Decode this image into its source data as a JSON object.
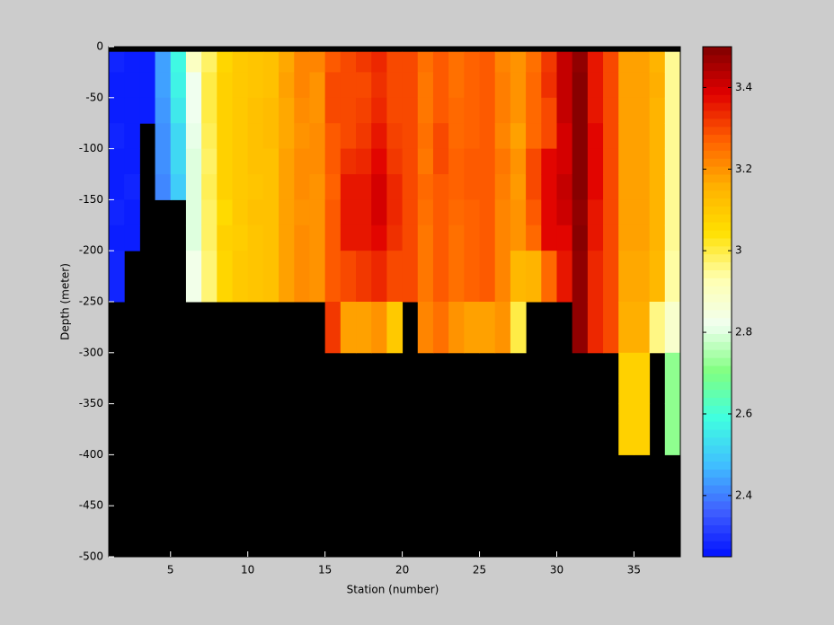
{
  "chart_data": {
    "type": "heatmap",
    "xlabel": "Station (number)",
    "ylabel": "Depth (meter)",
    "x": [
      1,
      2,
      3,
      4,
      5,
      6,
      7,
      8,
      9,
      10,
      11,
      12,
      13,
      14,
      15,
      16,
      17,
      18,
      19,
      20,
      21,
      22,
      23,
      24,
      25,
      26,
      27,
      28,
      29,
      30,
      31,
      32,
      33,
      34,
      35,
      36,
      37,
      38
    ],
    "y": [
      -5,
      -25,
      -50,
      -75,
      -100,
      -125,
      -150,
      -175,
      -200,
      -250,
      -300,
      -350,
      -400,
      -450,
      -500
    ],
    "z": [
      [
        2.28,
        2.27,
        2.27,
        2.28,
        2.27,
        2.27,
        2.28,
        2.27,
        2.28,
        null,
        null,
        null,
        null,
        null
      ],
      [
        2.27,
        2.27,
        2.27,
        2.27,
        2.27,
        2.28,
        2.27,
        2.27,
        null,
        null,
        null,
        null,
        null,
        null
      ],
      [
        2.27,
        2.27,
        2.27,
        null,
        null,
        null,
        null,
        null,
        null,
        null,
        null,
        null,
        null,
        null
      ],
      [
        2.44,
        2.44,
        2.43,
        2.42,
        2.42,
        2.41,
        null,
        null,
        null,
        null,
        null,
        null,
        null,
        null
      ],
      [
        2.58,
        2.57,
        2.55,
        2.52,
        2.52,
        2.5,
        null,
        null,
        null,
        null,
        null,
        null,
        null,
        null
      ],
      [
        2.9,
        2.82,
        2.82,
        2.81,
        2.8,
        2.8,
        2.8,
        2.8,
        2.83,
        null,
        null,
        null,
        null,
        null
      ],
      [
        2.98,
        3.0,
        3.0,
        2.99,
        2.98,
        2.99,
        2.98,
        2.98,
        2.97,
        null,
        null,
        null,
        null,
        null
      ],
      [
        3.07,
        3.08,
        3.08,
        3.08,
        3.08,
        3.08,
        3.06,
        3.08,
        3.07,
        null,
        null,
        null,
        null,
        null
      ],
      [
        3.1,
        3.1,
        3.1,
        3.1,
        3.1,
        3.1,
        3.1,
        3.09,
        3.1,
        null,
        null,
        null,
        null,
        null
      ],
      [
        3.11,
        3.11,
        3.12,
        3.12,
        3.12,
        3.11,
        3.12,
        3.11,
        3.11,
        null,
        null,
        null,
        null,
        null
      ],
      [
        3.12,
        3.12,
        3.13,
        3.13,
        3.12,
        3.12,
        3.12,
        3.12,
        3.12,
        null,
        null,
        null,
        null,
        null
      ],
      [
        3.17,
        3.18,
        3.17,
        3.17,
        3.18,
        3.18,
        3.18,
        3.18,
        3.18,
        null,
        null,
        null,
        null,
        null
      ],
      [
        3.22,
        3.22,
        3.21,
        3.2,
        3.21,
        3.21,
        3.2,
        3.21,
        3.21,
        null,
        null,
        null,
        null,
        null
      ],
      [
        3.22,
        3.2,
        3.2,
        3.21,
        3.21,
        3.2,
        3.2,
        3.2,
        3.2,
        null,
        null,
        null,
        null,
        null
      ],
      [
        3.28,
        3.3,
        3.3,
        3.28,
        3.28,
        3.27,
        3.28,
        3.28,
        3.28,
        3.32,
        null,
        null,
        null,
        null
      ],
      [
        3.3,
        3.3,
        3.3,
        3.3,
        3.33,
        3.36,
        3.36,
        3.36,
        3.3,
        3.18,
        null,
        null,
        null,
        null
      ],
      [
        3.32,
        3.3,
        3.31,
        3.32,
        3.34,
        3.36,
        3.36,
        3.36,
        3.32,
        3.18,
        null,
        null,
        null,
        null
      ],
      [
        3.34,
        3.33,
        3.34,
        3.36,
        3.38,
        3.4,
        3.4,
        3.38,
        3.34,
        3.2,
        null,
        null,
        null,
        null
      ],
      [
        3.3,
        3.3,
        3.3,
        3.31,
        3.32,
        3.34,
        3.34,
        3.33,
        3.3,
        3.1,
        null,
        null,
        null,
        null
      ],
      [
        3.3,
        3.3,
        3.3,
        3.3,
        3.3,
        3.3,
        3.3,
        3.3,
        3.3,
        null,
        null,
        null,
        null,
        null
      ],
      [
        3.25,
        3.24,
        3.24,
        3.25,
        3.24,
        3.26,
        3.25,
        3.24,
        3.24,
        3.22,
        null,
        null,
        null,
        null
      ],
      [
        3.28,
        3.28,
        3.28,
        3.3,
        3.3,
        3.28,
        3.28,
        3.28,
        3.28,
        3.25,
        null,
        null,
        null,
        null
      ],
      [
        3.25,
        3.25,
        3.26,
        3.26,
        3.27,
        3.27,
        3.26,
        3.25,
        3.25,
        3.2,
        null,
        null,
        null,
        null
      ],
      [
        3.27,
        3.27,
        3.27,
        3.27,
        3.28,
        3.28,
        3.27,
        3.27,
        3.27,
        3.18,
        null,
        null,
        null,
        null
      ],
      [
        3.28,
        3.28,
        3.28,
        3.28,
        3.28,
        3.28,
        3.28,
        3.28,
        3.28,
        3.18,
        null,
        null,
        null,
        null
      ],
      [
        3.22,
        3.23,
        3.23,
        3.22,
        3.24,
        3.23,
        3.22,
        3.22,
        3.22,
        3.2,
        null,
        null,
        null,
        null
      ],
      [
        3.2,
        3.2,
        3.2,
        3.18,
        3.2,
        3.19,
        3.2,
        3.2,
        3.14,
        3.0,
        null,
        null,
        null,
        null
      ],
      [
        3.25,
        3.26,
        3.26,
        3.26,
        3.3,
        3.3,
        3.28,
        3.26,
        3.15,
        null,
        null,
        null,
        null,
        null
      ],
      [
        3.32,
        3.33,
        3.3,
        3.3,
        3.38,
        3.38,
        3.38,
        3.38,
        3.26,
        null,
        null,
        null,
        null,
        null
      ],
      [
        3.42,
        3.42,
        3.42,
        3.4,
        3.4,
        3.42,
        3.41,
        3.38,
        3.36,
        null,
        null,
        null,
        null,
        null
      ],
      [
        3.48,
        3.49,
        3.49,
        3.49,
        3.49,
        3.49,
        3.48,
        3.49,
        3.48,
        3.48,
        null,
        null,
        null,
        null
      ],
      [
        3.36,
        3.36,
        3.36,
        3.38,
        3.38,
        3.38,
        3.36,
        3.36,
        3.34,
        3.34,
        null,
        null,
        null,
        null
      ],
      [
        3.3,
        3.3,
        3.3,
        3.3,
        3.3,
        3.3,
        3.3,
        3.3,
        3.3,
        3.3,
        null,
        null,
        null,
        null
      ],
      [
        3.18,
        3.18,
        3.18,
        3.18,
        3.18,
        3.18,
        3.18,
        3.18,
        3.17,
        3.16,
        3.08,
        3.08,
        null,
        null
      ],
      [
        3.18,
        3.18,
        3.18,
        3.18,
        3.18,
        3.18,
        3.18,
        3.18,
        3.17,
        3.16,
        3.08,
        3.08,
        null,
        null
      ],
      [
        3.15,
        3.16,
        3.15,
        3.15,
        3.15,
        3.15,
        3.15,
        3.15,
        3.14,
        2.96,
        null,
        null,
        null,
        null
      ],
      [
        2.95,
        2.95,
        2.95,
        2.95,
        2.95,
        2.95,
        2.95,
        2.95,
        2.94,
        2.88,
        2.72,
        2.72,
        null,
        null
      ]
    ],
    "xlim": [
      1,
      38
    ],
    "ylim": [
      -500,
      0
    ],
    "xticks": [
      5,
      10,
      15,
      20,
      25,
      30,
      35
    ],
    "yticks": [
      0,
      -50,
      -100,
      -150,
      -200,
      -250,
      -300,
      -350,
      -400,
      -450,
      -500
    ],
    "clim": [
      2.25,
      3.5
    ],
    "cticks": [
      2.4,
      2.6,
      2.8,
      3,
      3.2,
      3.4
    ],
    "colormap": [
      "#0010ff",
      "#4060ff",
      "#40c0ff",
      "#40ffe0",
      "#80ff80",
      "#f0fff0",
      "#ffffb0",
      "#ffe000",
      "#ffb000",
      "#ff6000",
      "#e00000",
      "#800000"
    ],
    "nan_color": "#000000"
  }
}
